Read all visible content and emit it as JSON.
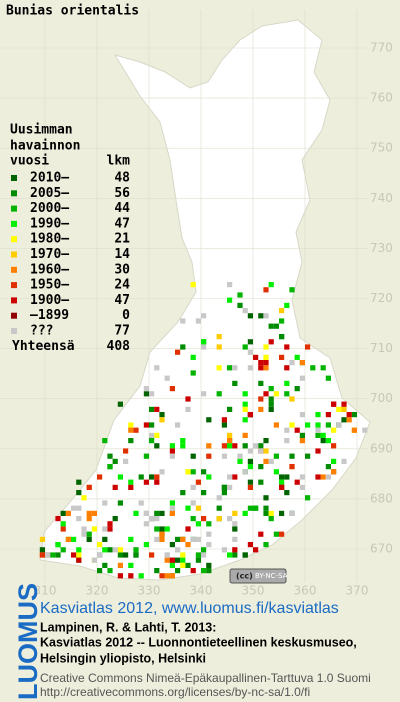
{
  "title": "Bunias orientalis",
  "legend": {
    "heading": [
      "Uusimman",
      "havainnon"
    ],
    "col_year": "vuosi",
    "col_count": "lkm",
    "rows": [
      {
        "label": "2010–",
        "count": 48,
        "color": "#006400"
      },
      {
        "label": "2005–",
        "count": 56,
        "color": "#008c00"
      },
      {
        "label": "2000–",
        "count": 44,
        "color": "#00b400"
      },
      {
        "label": "1990–",
        "count": 47,
        "color": "#00ee00"
      },
      {
        "label": "1980–",
        "count": 21,
        "color": "#ffff00"
      },
      {
        "label": "1970–",
        "count": 14,
        "color": "#ffcc00"
      },
      {
        "label": "1960–",
        "count": 30,
        "color": "#ff8000"
      },
      {
        "label": "1950–",
        "count": 24,
        "color": "#e03000"
      },
      {
        "label": "1900–",
        "count": 47,
        "color": "#cc0000"
      },
      {
        "label": "–1899",
        "count": 0,
        "color": "#900000"
      },
      {
        "label": "???",
        "count": 77,
        "color": "#c8c8c8"
      }
    ],
    "total_label": "Yhteensä",
    "total": 408
  },
  "grid": {
    "x_labels": [
      310,
      320,
      330,
      340,
      350,
      360,
      370
    ],
    "y_labels": [
      670,
      680,
      690,
      700,
      710,
      720,
      730,
      740,
      750,
      760,
      770
    ]
  },
  "badge": "BY-NC-SA",
  "footer": {
    "logo": "LUOMUS",
    "link": "Kasviatlas 2012, www.luomus.fi/kasviatlas",
    "citation": [
      "Lampinen, R. & Lahti, T. 2013:",
      "Kasviatlas 2012 -- Luonnontieteellinen keskusmuseo,",
      "Helsingin yliopisto, Helsinki"
    ],
    "license": [
      "Creative Commons Nimeä-Epäkaupallinen-Tarttuva 1.0 Suomi",
      "http://creativecommons.org/licenses/by-nc-sa/1.0/fi"
    ]
  }
}
